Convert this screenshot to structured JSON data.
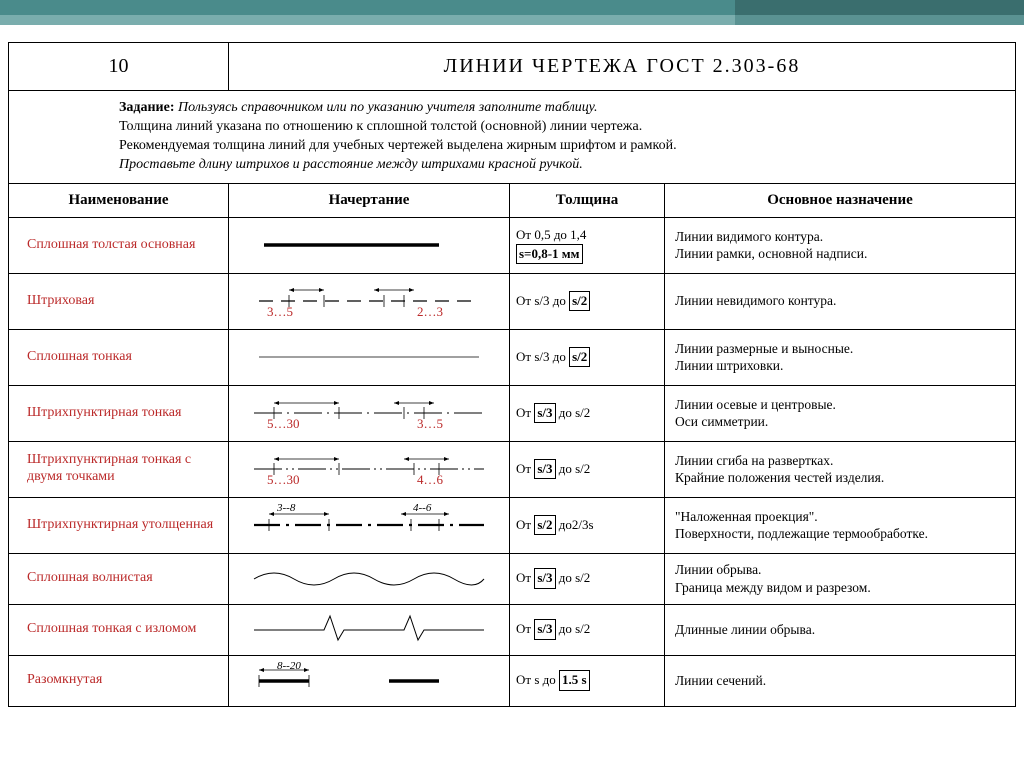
{
  "header": {
    "page_number": "10",
    "title": "ЛИНИИ  ЧЕРТЕЖА  ГОСТ  2.303-68"
  },
  "task": {
    "label": "Задание:",
    "line1_italic": "Пользуясь справочником или по указанию учителя заполните таблицу.",
    "line2": "Толщина  линий указана по отношению к сплошной толстой (основной) линии чертежа.",
    "line3": "Рекомендуемая толщина линий для учебных чертежей выделена жирным шрифтом и рамкой.",
    "line4_italic": "Проставьте длину штрихов и расстояние между штрихами красной ручкой."
  },
  "columns": {
    "name": "Наименование",
    "drawing": "Начертание",
    "thickness": "Толщина",
    "purpose": "Основное назначение"
  },
  "rows": [
    {
      "name": "Сплошная толстая основная",
      "thickness_html": "От 0,5 до 1,4<br><span class='box'>s=0,8-1 мм</span>",
      "purpose": "Линии видимого контура.<br>Линии рамки, основной надписи.",
      "draw": "thick-solid"
    },
    {
      "name": "Штриховая",
      "red1": "3…5",
      "red2": "2…3",
      "thickness_html": "От s/3 до <span class='box'>s/2</span>",
      "purpose": "Линии невидимого контура.",
      "draw": "dashed"
    },
    {
      "name": "Сплошная тонкая",
      "thickness_html": "От s/3 до <span class='box'>s/2</span>",
      "purpose": "Линии размерные и выносные.<br>Линии штриховки.",
      "draw": "thin-solid"
    },
    {
      "name": "Штрихпунктирная тонкая",
      "red1": "5…30",
      "red2": "3…5",
      "thickness_html": "От <span class='box'>s/3</span> до s/2",
      "purpose": "Линии осевые и центровые.<br>Оси симметрии.",
      "draw": "dashdot"
    },
    {
      "name": "Штрихпунктирная тонкая с двумя точками",
      "red1": "5…30",
      "red2": "4…6",
      "thickness_html": "От <span class='box'>s/3</span> до s/2",
      "purpose": "Линии сгиба на развертках.<br>Крайние положения честей изделия.",
      "draw": "dashdotdot"
    },
    {
      "name": "Штрихпунктирная утолщенная",
      "dim1": "3--8",
      "dim2": "4--6",
      "thickness_html": "От <span class='box'>s/2</span> до2/3s",
      "purpose": "\"Наложенная проекция\".<br>Поверхности, подлежащие термообработке.",
      "draw": "dashdot-thick"
    },
    {
      "name": "Сплошная волнистая",
      "thickness_html": "От <span class='box'>s/3</span> до s/2",
      "purpose": "Линии обрыва.<br>Граница между видом и разрезом.",
      "draw": "wavy"
    },
    {
      "name": "Сплошная тонкая с изломом",
      "thickness_html": "От <span class='box'>s/3</span> до s/2",
      "purpose": "Длинные линии обрыва.",
      "draw": "zigzag"
    },
    {
      "name": "Разомкнутая",
      "dim1": "8--20",
      "thickness_html": "От s до <span class='box'>1.5 s</span>",
      "purpose": "Линии сечений.",
      "draw": "open"
    }
  ],
  "colors": {
    "red": "#bb2a2a",
    "black": "#000000",
    "teal1": "#4a8b8b",
    "teal2": "#7aadad"
  }
}
